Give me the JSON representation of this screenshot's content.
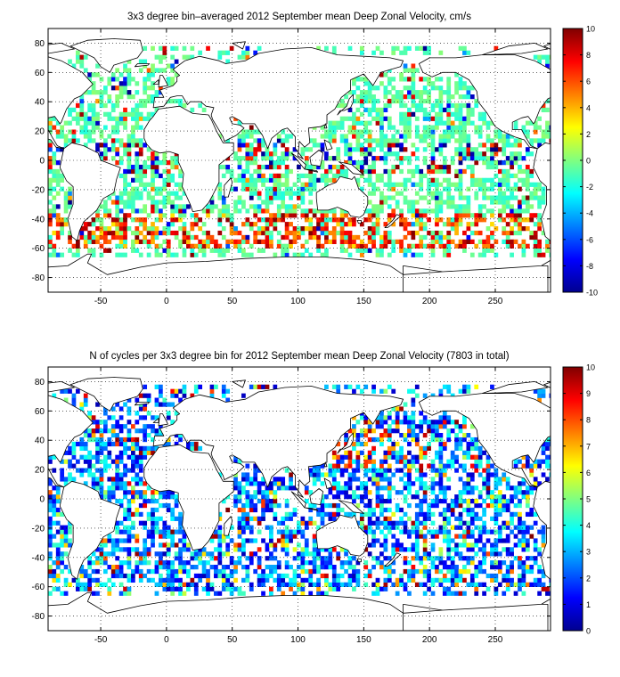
{
  "chart_data": [
    {
      "type": "heatmap",
      "title": "3x3 degree bin–averaged 2012 September mean Deep Zonal Velocity, cm/s",
      "xlim": [
        -90,
        292
      ],
      "ylim": [
        -90,
        90
      ],
      "xticks": [
        -50,
        0,
        50,
        100,
        150,
        200,
        250
      ],
      "yticks": [
        -80,
        -60,
        -40,
        -20,
        0,
        20,
        40,
        60,
        80
      ],
      "grid": "dotted",
      "colorbar": {
        "range": [
          -10,
          10
        ],
        "ticks": [
          -10,
          -8,
          -6,
          -4,
          -2,
          0,
          2,
          4,
          6,
          8,
          10
        ],
        "colormap": "jet"
      },
      "bin_size_deg": 3,
      "seed": 11
    },
    {
      "type": "heatmap",
      "title": "N of cycles per 3x3 degree bin for 2012 September mean Deep Zonal Velocity (7803 in total)",
      "xlim": [
        -90,
        292
      ],
      "ylim": [
        -90,
        90
      ],
      "xticks": [
        -50,
        0,
        50,
        100,
        150,
        200,
        250
      ],
      "yticks": [
        -80,
        -60,
        -40,
        -20,
        0,
        20,
        40,
        60,
        80
      ],
      "grid": "dotted",
      "colorbar": {
        "range": [
          0,
          10
        ],
        "ticks": [
          0,
          1,
          2,
          3,
          4,
          5,
          6,
          7,
          8,
          9,
          10
        ],
        "colormap": "jet"
      },
      "bin_size_deg": 3,
      "seed": 29
    }
  ]
}
